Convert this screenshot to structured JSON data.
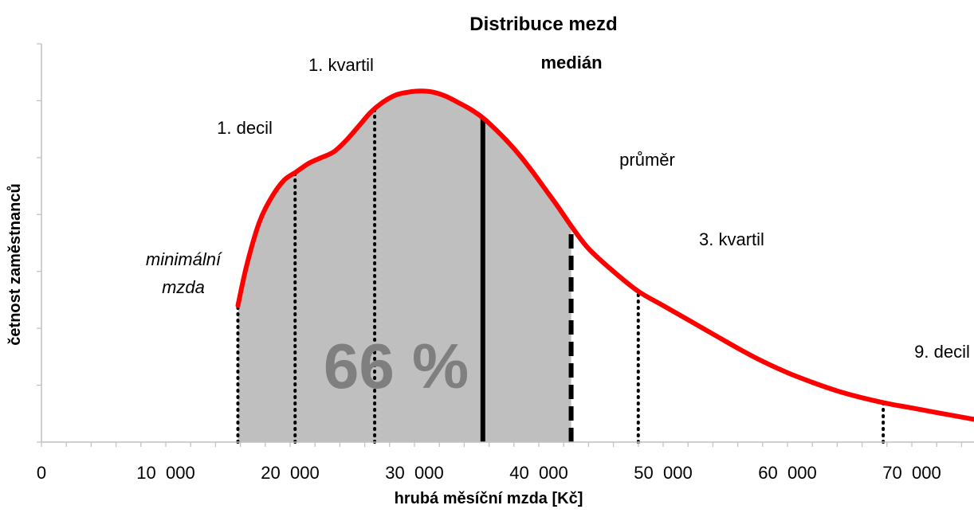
{
  "chart_data": {
    "type": "area",
    "title": "Distribuce mezd",
    "xlabel": "hrubá měsíční mzda [Kč]",
    "ylabel": "četnost zaměstnanců",
    "xlim": [
      0,
      75000
    ],
    "ylim": [
      0,
      7
    ],
    "x_tick_labels": [
      "0",
      "10  000",
      "20  000",
      "30  000",
      "40  000",
      "50  000",
      "60  000",
      "70  000"
    ],
    "x_tick_values": [
      0,
      10000,
      20000,
      30000,
      40000,
      50000,
      60000,
      70000
    ],
    "grid": false,
    "curve_color": "#ff0000",
    "fill_color": "#bfbfbf",
    "shaded_range": [
      15800,
      42600
    ],
    "shaded_share_label": "66 %",
    "curve": {
      "x": [
        15800,
        16500,
        17500,
        18500,
        19500,
        20500,
        21500,
        22500,
        23500,
        24500,
        25500,
        26500,
        27500,
        28500,
        29500,
        30500,
        31500,
        32500,
        33500,
        34500,
        35500,
        36500,
        37500,
        38500,
        39500,
        40500,
        41500,
        42600,
        44000,
        46000,
        48000,
        50000,
        52000,
        54000,
        56000,
        58000,
        60000,
        62000,
        64000,
        66000,
        68000,
        70000,
        72000,
        75000
      ],
      "y": [
        2.4,
        3.1,
        3.85,
        4.3,
        4.6,
        4.75,
        4.9,
        5.0,
        5.1,
        5.3,
        5.55,
        5.8,
        5.98,
        6.1,
        6.15,
        6.17,
        6.15,
        6.08,
        5.97,
        5.85,
        5.7,
        5.5,
        5.28,
        5.03,
        4.75,
        4.45,
        4.15,
        3.8,
        3.4,
        3.0,
        2.65,
        2.4,
        2.15,
        1.9,
        1.65,
        1.42,
        1.22,
        1.05,
        0.9,
        0.78,
        0.68,
        0.6,
        0.52,
        0.4
      ]
    },
    "markers": [
      {
        "name": "minimální mzda",
        "x": 15800,
        "style": "dotted"
      },
      {
        "name": "1. decil",
        "x": 20400,
        "style": "dotted"
      },
      {
        "name": "1. kvartil",
        "x": 26800,
        "style": "dotted"
      },
      {
        "name": "medián",
        "x": 35500,
        "style": "solid"
      },
      {
        "name": "průměr",
        "x": 42600,
        "style": "dashed"
      },
      {
        "name": "3. kvartil",
        "x": 48000,
        "style": "dotted"
      },
      {
        "name": "9. decil",
        "x": 67700,
        "style": "dotted"
      }
    ],
    "annotations": [
      {
        "text": "minimální",
        "style": "italic"
      },
      {
        "text": "mzda",
        "style": "italic"
      },
      {
        "text": "1. decil",
        "style": "normal"
      },
      {
        "text": "1. kvartil",
        "style": "normal"
      },
      {
        "text": "medián",
        "style": "bold"
      },
      {
        "text": "průměr",
        "style": "normal"
      },
      {
        "text": "3. kvartil",
        "style": "normal"
      },
      {
        "text": "9. decil",
        "style": "normal"
      }
    ]
  }
}
